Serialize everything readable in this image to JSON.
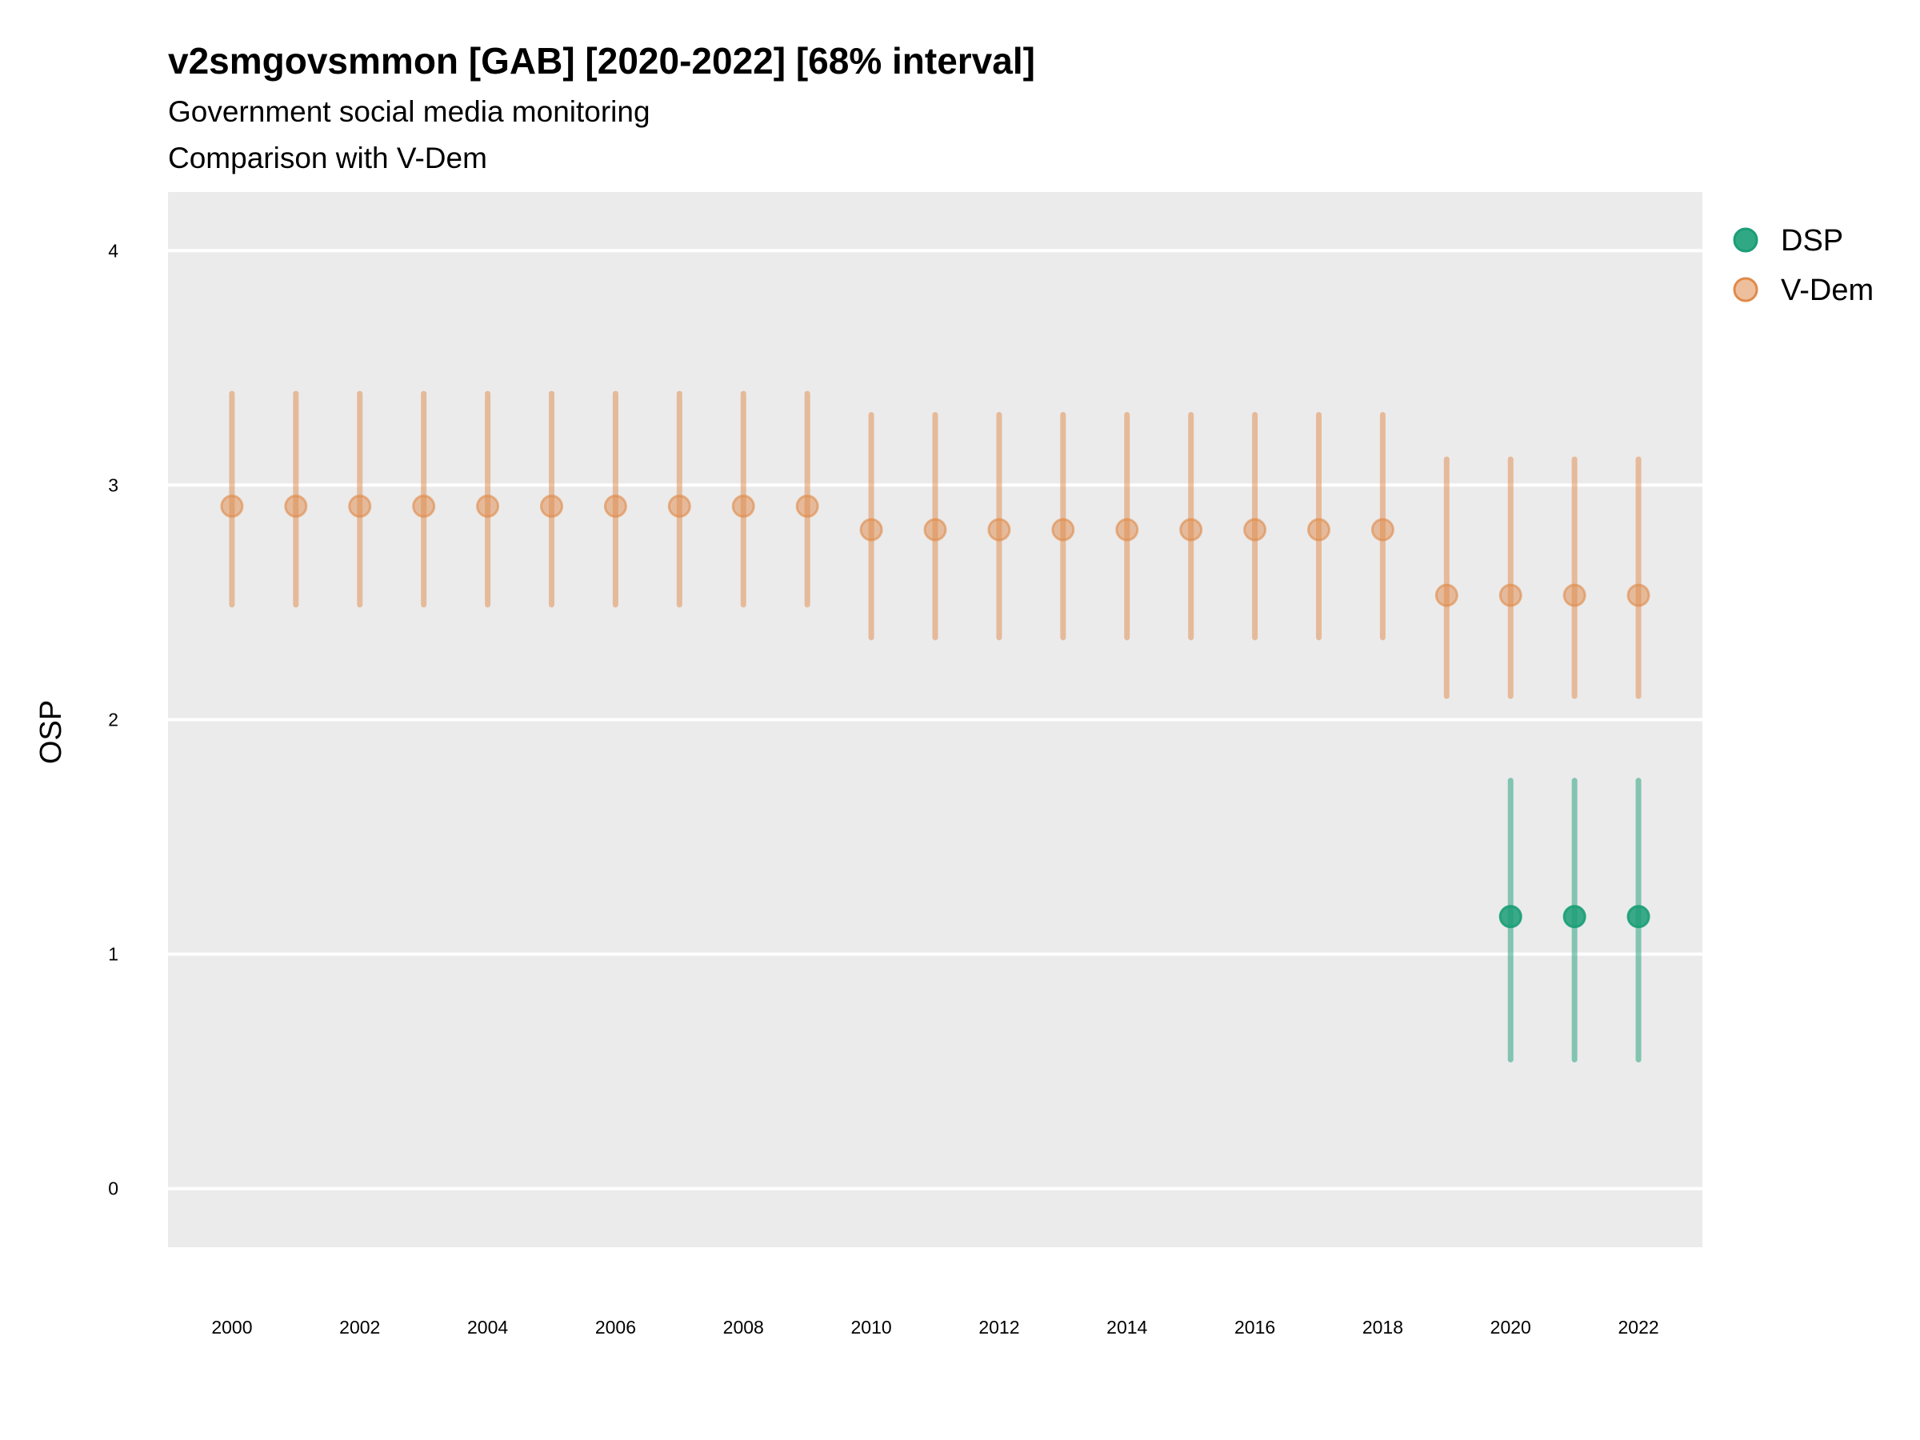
{
  "chart_data": {
    "type": "scatter",
    "subtype": "pointrange",
    "title": "v2smgovsmmon [GAB] [2020-2022] [68% interval]",
    "subtitle_lines": [
      "Government social media monitoring",
      "Comparison with V-Dem"
    ],
    "xlabel": "",
    "ylabel": "OSP",
    "xlim": [
      1999,
      2023
    ],
    "ylim": [
      -0.25,
      4.25
    ],
    "x_ticks": [
      2000,
      2002,
      2004,
      2006,
      2008,
      2010,
      2012,
      2014,
      2016,
      2018,
      2020,
      2022
    ],
    "y_ticks": [
      0,
      1,
      2,
      3,
      4
    ],
    "grid": true,
    "legend_position": "right",
    "series": [
      {
        "name": "DSP",
        "color": "#1b9e77",
        "x": [
          2020,
          2021,
          2022
        ],
        "y": [
          1.16,
          1.16,
          1.16
        ],
        "lower": [
          0.55,
          0.55,
          0.55
        ],
        "upper": [
          1.74,
          1.74,
          1.74
        ]
      },
      {
        "name": "V-Dem",
        "color": "#e08a4a",
        "x": [
          2000,
          2001,
          2002,
          2003,
          2004,
          2005,
          2006,
          2007,
          2008,
          2009,
          2010,
          2011,
          2012,
          2013,
          2014,
          2015,
          2016,
          2017,
          2018,
          2019,
          2020,
          2021,
          2022
        ],
        "y": [
          2.91,
          2.91,
          2.91,
          2.91,
          2.91,
          2.91,
          2.91,
          2.91,
          2.91,
          2.91,
          2.81,
          2.81,
          2.81,
          2.81,
          2.81,
          2.81,
          2.81,
          2.81,
          2.81,
          2.53,
          2.53,
          2.53,
          2.53
        ],
        "lower": [
          2.49,
          2.49,
          2.49,
          2.49,
          2.49,
          2.49,
          2.49,
          2.49,
          2.49,
          2.49,
          2.35,
          2.35,
          2.35,
          2.35,
          2.35,
          2.35,
          2.35,
          2.35,
          2.35,
          2.1,
          2.1,
          2.1,
          2.1
        ],
        "upper": [
          3.39,
          3.39,
          3.39,
          3.39,
          3.39,
          3.39,
          3.39,
          3.39,
          3.39,
          3.39,
          3.3,
          3.3,
          3.3,
          3.3,
          3.3,
          3.3,
          3.3,
          3.3,
          3.3,
          3.11,
          3.11,
          3.11,
          3.11
        ]
      }
    ]
  }
}
